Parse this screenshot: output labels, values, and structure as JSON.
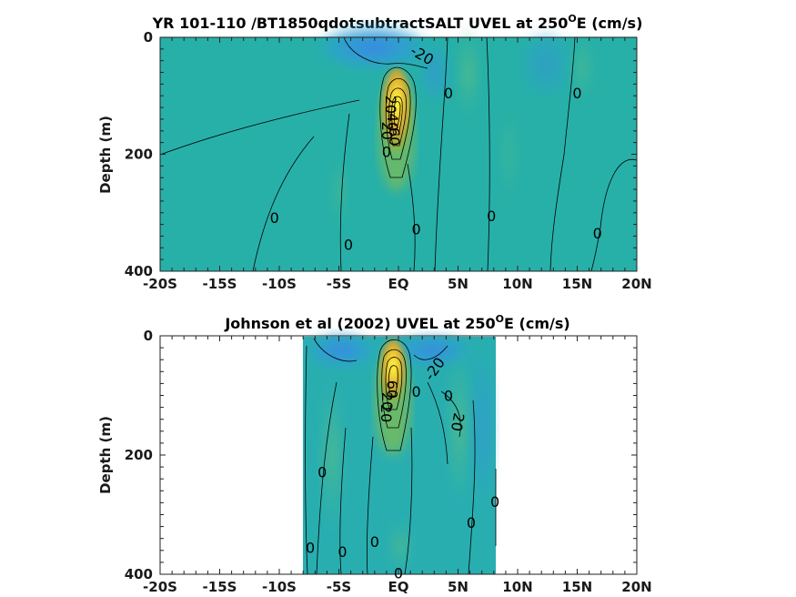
{
  "chart_data": [
    {
      "type": "heatmap",
      "title_pre": "YR 101-110 /BT1850qdotsubtractSALT UVEL at 250",
      "title_sup": "O",
      "title_post": "E (cm/s)",
      "xlabel": "",
      "ylabel": "Depth (m)",
      "xlim": [
        -20,
        20
      ],
      "ylim": [
        0,
        400
      ],
      "y_reversed": true,
      "x_ticks": [
        -20,
        -15,
        -10,
        -5,
        0,
        5,
        10,
        15,
        20
      ],
      "x_tick_labels": [
        "-20S",
        "-15S",
        "-10S",
        "-5S",
        "EQ",
        "5N",
        "10N",
        "15N",
        "20N"
      ],
      "y_ticks": [
        0,
        200,
        400
      ],
      "y_tick_labels": [
        "0",
        "200",
        "400"
      ],
      "data_xrange": [
        -20,
        20
      ],
      "grid": false,
      "colors": {
        "low": "#3b82e0",
        "mid": "#22b3a8",
        "high": "#f9f033",
        "peak": "#d99a2a"
      },
      "features": [
        {
          "kind": "jet",
          "x": 0.0,
          "depth": 115,
          "max_value": 100
        },
        {
          "kind": "westward_surface_flow",
          "x": 1.0,
          "depth": 20,
          "value": -20
        }
      ],
      "contour_labels": [
        {
          "text": "-20",
          "x": 2.0,
          "depth": 30,
          "rotation": 30
        },
        {
          "text": "0",
          "x": 4.2,
          "depth": 95
        },
        {
          "text": "0",
          "x": 15.0,
          "depth": 95
        },
        {
          "text": "0",
          "x": -1.0,
          "depth": 195
        },
        {
          "text": "0",
          "x": -10.4,
          "depth": 308
        },
        {
          "text": "0",
          "x": 1.5,
          "depth": 328
        },
        {
          "text": "0",
          "x": 7.8,
          "depth": 305
        },
        {
          "text": "0",
          "x": -4.2,
          "depth": 354
        },
        {
          "text": "0",
          "x": 16.7,
          "depth": 335
        },
        {
          "text": "20",
          "x": -0.6,
          "depth": 115,
          "rotation": 90
        },
        {
          "text": "40",
          "x": -0.45,
          "depth": 145,
          "rotation": 90
        },
        {
          "text": "60",
          "x": -0.3,
          "depth": 170,
          "rotation": 90
        },
        {
          "text": "20",
          "x": -0.9,
          "depth": 160,
          "rotation": 90
        }
      ]
    },
    {
      "type": "heatmap",
      "title_pre": "Johnson et al (2002) UVEL at 250",
      "title_sup": "O",
      "title_post": "E (cm/s)",
      "xlabel": "",
      "ylabel": "Depth (m)",
      "xlim": [
        -20,
        20
      ],
      "ylim": [
        0,
        400
      ],
      "y_reversed": true,
      "x_ticks": [
        -20,
        -15,
        -10,
        -5,
        0,
        5,
        10,
        15,
        20
      ],
      "x_tick_labels": [
        "-20S",
        "-15S",
        "-10S",
        "-5S",
        "EQ",
        "5N",
        "10N",
        "15N",
        "20N"
      ],
      "y_ticks": [
        0,
        200,
        400
      ],
      "y_tick_labels": [
        "0",
        "200",
        "400"
      ],
      "data_xrange": [
        -8,
        8.2
      ],
      "grid": false,
      "colors": {
        "low": "#3b82e0",
        "mid": "#22b3a8",
        "high": "#f9f033",
        "peak": "#d99a2a"
      },
      "features": [
        {
          "kind": "jet",
          "x": -0.3,
          "depth": 75,
          "max_value": 100
        },
        {
          "kind": "westward_surface_flow",
          "x": 2.5,
          "depth": 15,
          "value": -20
        }
      ],
      "contour_labels": [
        {
          "text": "-20",
          "x": 3.0,
          "depth": 55,
          "rotation": -55
        },
        {
          "text": "20",
          "x": 5.0,
          "depth": 145,
          "rotation": 100
        },
        {
          "text": "0",
          "x": 4.2,
          "depth": 100
        },
        {
          "text": "0",
          "x": 1.5,
          "depth": 93
        },
        {
          "text": "0",
          "x": -6.4,
          "depth": 228
        },
        {
          "text": "0",
          "x": 8.1,
          "depth": 278
        },
        {
          "text": "0",
          "x": 6.1,
          "depth": 313
        },
        {
          "text": "0",
          "x": -2.0,
          "depth": 345
        },
        {
          "text": "0",
          "x": -7.4,
          "depth": 355
        },
        {
          "text": "0",
          "x": -4.7,
          "depth": 362
        },
        {
          "text": "0",
          "x": 0.0,
          "depth": 398
        },
        {
          "text": "20",
          "x": -0.9,
          "depth": 110,
          "rotation": 90
        },
        {
          "text": "60",
          "x": -0.5,
          "depth": 90,
          "rotation": 90
        },
        {
          "text": "20",
          "x": -1.0,
          "depth": 130,
          "rotation": 90
        }
      ]
    }
  ]
}
